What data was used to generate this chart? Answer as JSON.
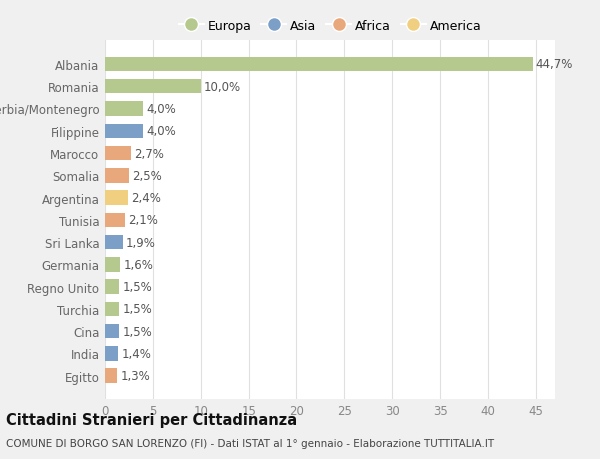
{
  "categories": [
    "Albania",
    "Romania",
    "Serbia/Montenegro",
    "Filippine",
    "Marocco",
    "Somalia",
    "Argentina",
    "Tunisia",
    "Sri Lanka",
    "Germania",
    "Regno Unito",
    "Turchia",
    "Cina",
    "India",
    "Egitto"
  ],
  "values": [
    44.7,
    10.0,
    4.0,
    4.0,
    2.7,
    2.5,
    2.4,
    2.1,
    1.9,
    1.6,
    1.5,
    1.5,
    1.5,
    1.4,
    1.3
  ],
  "labels": [
    "44,7%",
    "10,0%",
    "4,0%",
    "4,0%",
    "2,7%",
    "2,5%",
    "2,4%",
    "2,1%",
    "1,9%",
    "1,6%",
    "1,5%",
    "1,5%",
    "1,5%",
    "1,4%",
    "1,3%"
  ],
  "continent": [
    "Europa",
    "Europa",
    "Europa",
    "Asia",
    "Africa",
    "Africa",
    "America",
    "Africa",
    "Asia",
    "Europa",
    "Europa",
    "Europa",
    "Asia",
    "Asia",
    "Africa"
  ],
  "colors": {
    "Europa": "#b5c98e",
    "Asia": "#7b9fc7",
    "Africa": "#e8a87c",
    "America": "#f0d080"
  },
  "legend_labels": [
    "Europa",
    "Asia",
    "Africa",
    "America"
  ],
  "legend_colors": [
    "#b5c98e",
    "#7b9fc7",
    "#e8a87c",
    "#f0d080"
  ],
  "xlim": [
    0,
    47
  ],
  "xticks": [
    0,
    5,
    10,
    15,
    20,
    25,
    30,
    35,
    40,
    45
  ],
  "title": "Cittadini Stranieri per Cittadinanza",
  "subtitle": "COMUNE DI BORGO SAN LORENZO (FI) - Dati ISTAT al 1° gennaio - Elaborazione TUTTITALIA.IT",
  "bg_color": "#f0f0f0",
  "plot_bg_color": "#ffffff",
  "grid_color": "#e0e0e0",
  "bar_height": 0.65,
  "label_fontsize": 8.5,
  "tick_fontsize": 8.5,
  "title_fontsize": 10.5,
  "subtitle_fontsize": 7.5
}
